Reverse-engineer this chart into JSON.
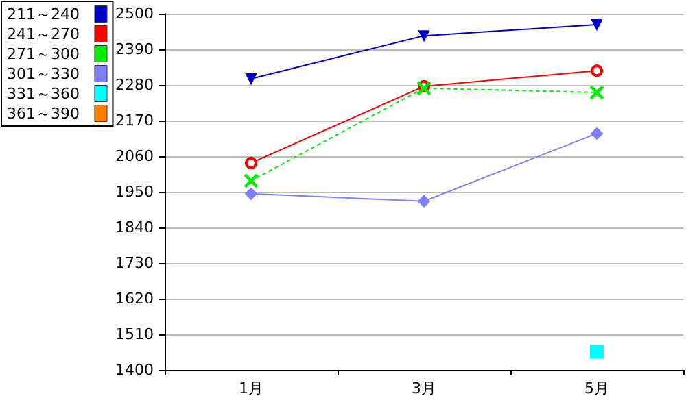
{
  "chart_data": {
    "type": "line",
    "categories": [
      "1月",
      "3月",
      "5月"
    ],
    "series": [
      {
        "name": "211～240",
        "color": "#0000cc",
        "values": [
          2299,
          2432,
          2466
        ],
        "marker": "triangle-down"
      },
      {
        "name": "241～270",
        "color": "#ff0000",
        "values": [
          2039,
          2276,
          2324
        ],
        "marker": "circle"
      },
      {
        "name": "271～300",
        "color": "#00ee00",
        "values": [
          1984,
          2270,
          2257
        ],
        "marker": "cross",
        "line_style": "dotted"
      },
      {
        "name": "301～330",
        "color": "#8080ff",
        "values": [
          1944,
          1921,
          2130
        ],
        "marker": "diamond"
      },
      {
        "name": "331～360",
        "color": "#00ffff",
        "values": [
          null,
          null,
          1457
        ],
        "marker": "square"
      },
      {
        "name": "361～390",
        "color": "#ff8000",
        "values": [
          null,
          null,
          null
        ]
      }
    ],
    "ylim": [
      1400,
      2500
    ],
    "yticks": [
      1400,
      1510,
      1620,
      1730,
      1840,
      1950,
      2060,
      2170,
      2280,
      2390,
      2500
    ],
    "grid": "y",
    "legend": "top left",
    "line_style": "solid"
  }
}
